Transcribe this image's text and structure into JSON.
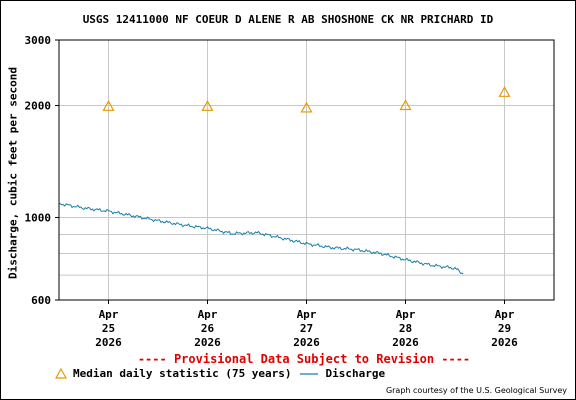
{
  "header": {
    "title": "USGS 12411000 NF COEUR D ALENE R AB SHOSHONE CK NR PRICHARD ID"
  },
  "notice": "---- Provisional Data Subject to Revision ----",
  "credit": "Graph courtesy of the U.S. Geological Survey",
  "legend": {
    "median_label": "Median daily statistic (75 years)",
    "discharge_label": "Discharge"
  },
  "colors": {
    "discharge": "#1a7fa8",
    "median": "#e39b00",
    "grid": "#c8c8c8",
    "provisional": "#e00000"
  },
  "chart_data": {
    "type": "line",
    "title": "USGS 12411000 NF COEUR D ALENE R AB SHOSHONE CK NR PRICHARD ID",
    "ylabel": "Discharge, cubic feet per second",
    "xlabel": "",
    "y_scale": "log",
    "ylim": [
      600,
      3000
    ],
    "y_ticks": [
      600,
      1000,
      2000,
      3000
    ],
    "x_range": [
      "2026-04-24T12:00",
      "2026-04-29T12:00"
    ],
    "x_ticks": [
      {
        "date": "2026-04-25T00:00",
        "label": [
          "Apr",
          "25",
          "2026"
        ]
      },
      {
        "date": "2026-04-26T00:00",
        "label": [
          "Apr",
          "26",
          "2026"
        ]
      },
      {
        "date": "2026-04-27T00:00",
        "label": [
          "Apr",
          "27",
          "2026"
        ]
      },
      {
        "date": "2026-04-28T00:00",
        "label": [
          "Apr",
          "28",
          "2026"
        ]
      },
      {
        "date": "2026-04-29T00:00",
        "label": [
          "Apr",
          "29",
          "2026"
        ]
      }
    ],
    "grid": true,
    "series": [
      {
        "name": "Discharge",
        "x": [
          "2026-04-24T12:00",
          "2026-04-24T18:00",
          "2026-04-25T00:00",
          "2026-04-25T06:00",
          "2026-04-25T12:00",
          "2026-04-25T18:00",
          "2026-04-26T00:00",
          "2026-04-26T06:00",
          "2026-04-26T12:00",
          "2026-04-26T18:00",
          "2026-04-27T00:00",
          "2026-04-27T06:00",
          "2026-04-27T12:00",
          "2026-04-27T18:00",
          "2026-04-28T00:00",
          "2026-04-28T06:00",
          "2026-04-28T12:00",
          "2026-04-28T14:00"
        ],
        "values": [
          1090,
          1060,
          1040,
          1010,
          980,
          955,
          935,
          905,
          910,
          880,
          850,
          830,
          820,
          800,
          770,
          745,
          730,
          705
        ]
      },
      {
        "name": "Median daily statistic (75 years)",
        "x": [
          "2026-04-25T00:00",
          "2026-04-26T00:00",
          "2026-04-27T00:00",
          "2026-04-28T00:00",
          "2026-04-29T00:00"
        ],
        "values": [
          1990,
          1990,
          1970,
          2000,
          2170
        ]
      }
    ]
  }
}
